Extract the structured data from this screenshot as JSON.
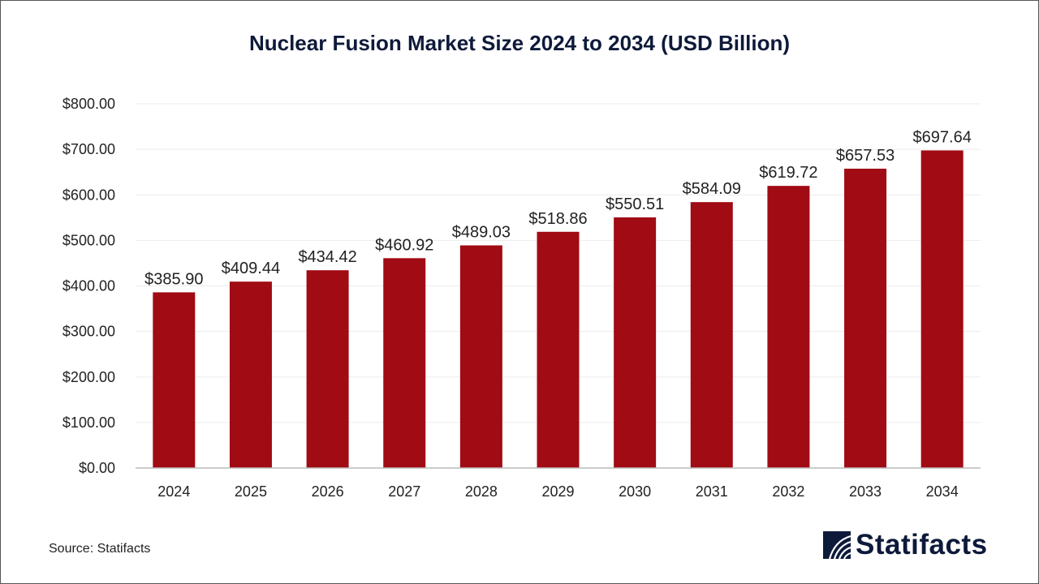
{
  "chart_data": {
    "type": "bar",
    "title": "Nuclear Fusion Market Size 2024 to 2034 (USD Billion)",
    "categories": [
      "2024",
      "2025",
      "2026",
      "2027",
      "2028",
      "2029",
      "2030",
      "2031",
      "2032",
      "2033",
      "2034"
    ],
    "values": [
      385.9,
      409.44,
      434.42,
      460.92,
      489.03,
      518.86,
      550.51,
      584.09,
      619.72,
      657.53,
      697.64
    ],
    "data_labels": [
      "$385.90",
      "$409.44",
      "$434.42",
      "$460.92",
      "$489.03",
      "$518.86",
      "$550.51",
      "$584.09",
      "$619.72",
      "$657.53",
      "$697.64"
    ],
    "y_ticks": [
      0,
      100,
      200,
      300,
      400,
      500,
      600,
      700,
      800
    ],
    "y_tick_labels": [
      "$0.00",
      "$100.00",
      "$200.00",
      "$300.00",
      "$400.00",
      "$500.00",
      "$600.00",
      "$700.00",
      "$800.00"
    ],
    "ylim": [
      0,
      800
    ],
    "xlabel": "",
    "ylabel": "",
    "grid": true,
    "legend": "none",
    "bar_color": "#a00b14"
  },
  "source": "Source: Statifacts",
  "logo": {
    "text": "Statifacts",
    "color": "#0e1a3a"
  }
}
